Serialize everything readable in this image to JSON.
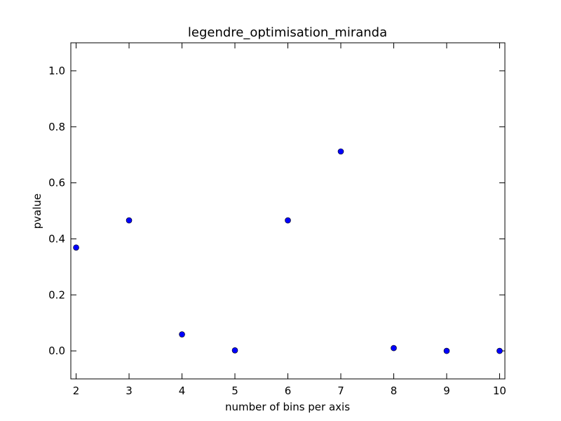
{
  "chart_data": {
    "type": "scatter",
    "title": "legendre_optimisation_miranda",
    "xlabel": "number of bins per axis",
    "ylabel": "pvalue",
    "xlim": [
      1.9,
      10.1
    ],
    "ylim": [
      -0.1,
      1.1
    ],
    "xticks": [
      2,
      3,
      4,
      5,
      6,
      7,
      8,
      9,
      10
    ],
    "yticks": [
      0.0,
      0.2,
      0.4,
      0.6,
      0.8,
      1.0
    ],
    "ytick_labels": [
      "0.0",
      "0.2",
      "0.4",
      "0.6",
      "0.8",
      "1.0"
    ],
    "grid": false,
    "series": [
      {
        "x": [
          2,
          3,
          4,
          5,
          6,
          7,
          8,
          9,
          10
        ],
        "y": [
          0.369,
          0.466,
          0.059,
          0.002,
          0.466,
          0.712,
          0.01,
          0.0,
          0.0
        ],
        "color": "#0000ff"
      }
    ]
  }
}
